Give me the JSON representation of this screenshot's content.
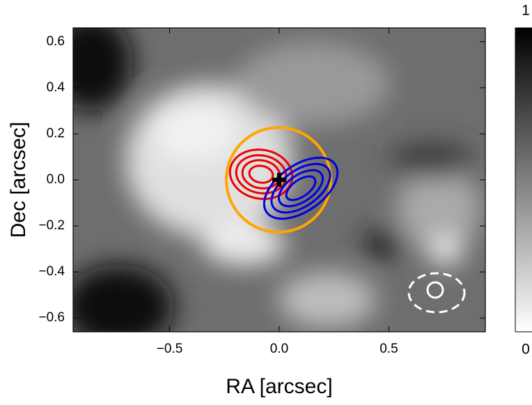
{
  "chart_data": {
    "type": "image",
    "xlabel": "RA [arcsec]",
    "ylabel": "Dec [arcsec]",
    "xlim": [
      -0.94,
      0.94
    ],
    "ylim": [
      -0.66,
      0.66
    ],
    "xticks": [
      {
        "value": -0.5,
        "label": "−0.5"
      },
      {
        "value": 0,
        "label": "0.0"
      },
      0.5
    ],
    "yticks": [
      0.6,
      0.4,
      0.2,
      {
        "value": 0,
        "label": "0.0"
      },
      {
        "value": -0.2,
        "label": "−0.2"
      },
      {
        "value": -0.4,
        "label": "−0.4"
      },
      {
        "value": -0.6,
        "label": "−0.6"
      }
    ],
    "colorbar": {
      "clim": [
        0,
        1
      ],
      "ticks": [
        0,
        1
      ]
    }
  }
}
